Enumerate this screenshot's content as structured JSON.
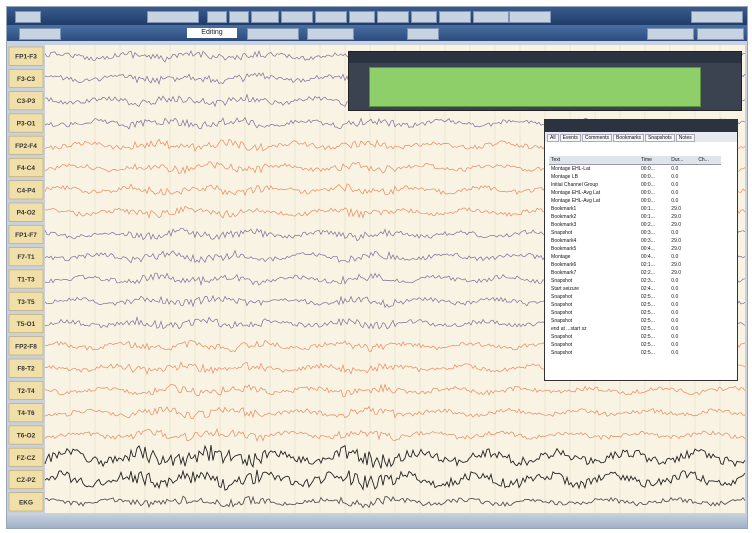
{
  "channels": [
    "FP1-F3",
    "F3-C3",
    "C3-P3",
    "P3-O1",
    "FP2-F4",
    "F4-C4",
    "C4-P4",
    "P4-O2",
    "FP1-F7",
    "F7-T1",
    "T1-T3",
    "T3-T5",
    "T5-O1",
    "FP2-F8",
    "F8-T2",
    "T2-T4",
    "T4-T6",
    "T6-O2",
    "FZ-CZ",
    "CZ-PZ",
    "EKG"
  ],
  "toolbar": {
    "mode": "Editing"
  },
  "event_window": {
    "tabs": [
      "All",
      "Events",
      "Comments",
      "Bookmarks",
      "Snapshots",
      "Notes"
    ],
    "columns": [
      "Text",
      "Time",
      "Dur...",
      "Ch..."
    ],
    "rows": [
      [
        "Montage EHL-Lat",
        "00:0...",
        "0.0"
      ],
      [
        "Montage LB",
        "00:0...",
        "0.0"
      ],
      [
        "Initial Channel Group",
        "00:0...",
        "0.0"
      ],
      [
        "Montage EHL-Avg Lat",
        "00:0...",
        "0.0"
      ],
      [
        "Montage EHL-Avg Lat",
        "00:0...",
        "0.0"
      ],
      [
        "Bookmark1",
        "00:1...",
        "29.0"
      ],
      [
        "Bookmark2",
        "00:1...",
        "29.0"
      ],
      [
        "Bookmark3",
        "00:2...",
        "29.0"
      ],
      [
        "Snapshot",
        "00:3...",
        "0.0"
      ],
      [
        "Bookmark4",
        "00:3...",
        "29.0"
      ],
      [
        "Bookmark5",
        "00:4...",
        "29.0"
      ],
      [
        "Montage",
        "00:4...",
        "0.0"
      ],
      [
        "Bookmark6",
        "02:1...",
        "29.0"
      ],
      [
        "Bookmark7",
        "02:2...",
        "29.0"
      ],
      [
        "Snapshot",
        "02:3...",
        "0.0"
      ],
      [
        "Start seizure",
        "02:4...",
        "0.0"
      ],
      [
        "Snapshot",
        "02:5...",
        "0.0"
      ],
      [
        "Snapshot",
        "02:5...",
        "0.0"
      ],
      [
        "Snapshot",
        "02:5...",
        "0.0"
      ],
      [
        "Snapshot",
        "02:5...",
        "0.0"
      ],
      [
        "end at ...start sz",
        "02:5...",
        "0.0"
      ],
      [
        "Snapshot",
        "02:5...",
        "0.0"
      ],
      [
        "Snapshot",
        "02:5...",
        "0.0"
      ],
      [
        "Snapshot",
        "02:5...",
        "0.0"
      ]
    ]
  }
}
